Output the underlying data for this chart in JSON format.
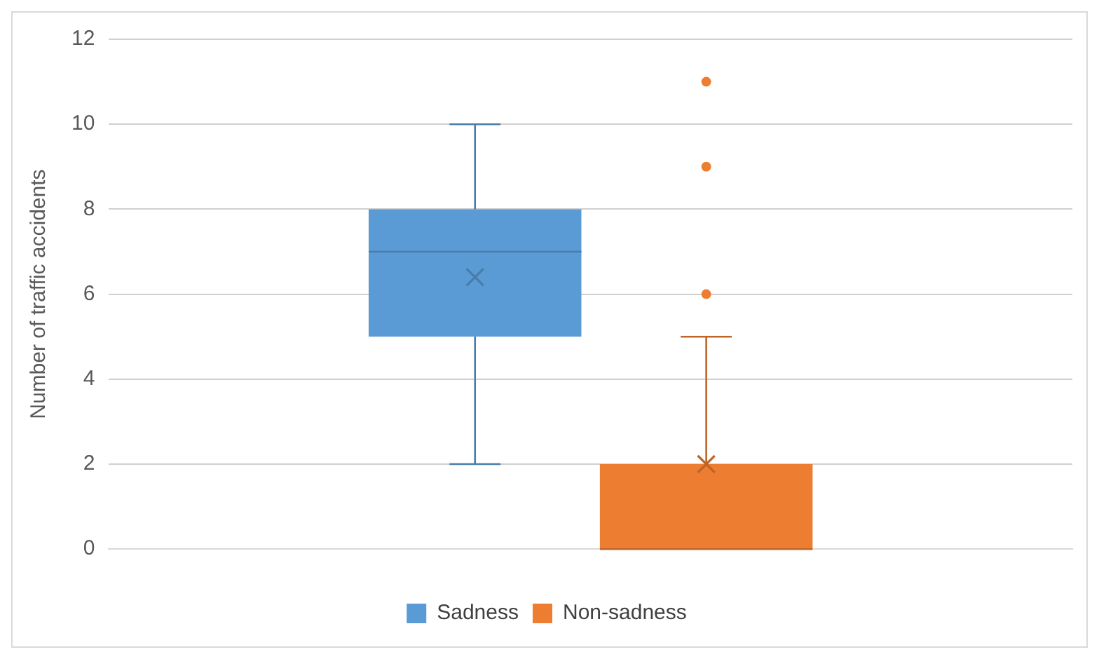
{
  "chart_data": {
    "type": "box",
    "ylabel": "Number of traffic accidents",
    "categories": [
      null
    ],
    "series": [
      {
        "name": "Sadness",
        "color": "#5b9bd5",
        "boxes": [
          {
            "low": 2,
            "q1": 5,
            "median": 7,
            "q3": 8,
            "high": 10,
            "mean": 6.4
          }
        ]
      },
      {
        "name": "Non-sadness",
        "color": "#ed7d31",
        "boxes": [
          {
            "low": 0,
            "q1": 0,
            "median": 0,
            "q3": 2,
            "high": 5,
            "mean": 2,
            "outliers": [
              6,
              9,
              11
            ]
          }
        ]
      }
    ],
    "ylim": [
      0,
      12
    ],
    "yticks": [
      0,
      2,
      4,
      6,
      8,
      10,
      12
    ],
    "grid": "y",
    "legend": "bottom"
  }
}
